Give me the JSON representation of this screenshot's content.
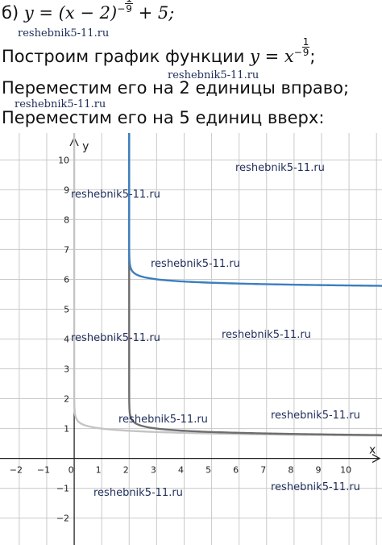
{
  "header": {
    "line1": {
      "prefix": "б) ",
      "formula_left": "y = (x − 2)",
      "exp_minus": "−",
      "exp_num": "1",
      "exp_den": "9",
      "formula_right": "+ 5;"
    },
    "line2": {
      "text": "Построим график функции ",
      "formula": "y = x",
      "exp_minus": "−",
      "exp_num": "1",
      "exp_den": "9",
      "tail": ";"
    },
    "line3": "Переместим его на 2 единицы вправо;",
    "line4": "Переместим его на 5 единиц вверх:"
  },
  "watermark": "reshebnik5-11.ru",
  "chart_data": {
    "type": "line",
    "xlabel": "x",
    "ylabel": "y",
    "xlim": [
      -2.7,
      11.2
    ],
    "ylim": [
      -2.9,
      10.9
    ],
    "x_ticks": [
      "-2",
      "-1",
      "0",
      "1",
      "2",
      "3",
      "4",
      "5",
      "6",
      "7",
      "8",
      "9",
      "10"
    ],
    "y_ticks": [
      "-2",
      "-1",
      "1",
      "2",
      "3",
      "4",
      "5",
      "6",
      "7",
      "8",
      "9",
      "10"
    ],
    "grid": true,
    "series": [
      {
        "function": "y = x^(-1/9)",
        "shift_x": 0,
        "shift_y": 0,
        "color": "#c4c4c4"
      },
      {
        "function": "y = (x - 2)^(-1/9)",
        "shift_x": 2,
        "shift_y": 0,
        "color": "#6e6e6e"
      },
      {
        "function": "y = (x - 2)^(-1/9) + 5",
        "shift_x": 2,
        "shift_y": 5,
        "color": "#3b7fbf"
      }
    ]
  }
}
